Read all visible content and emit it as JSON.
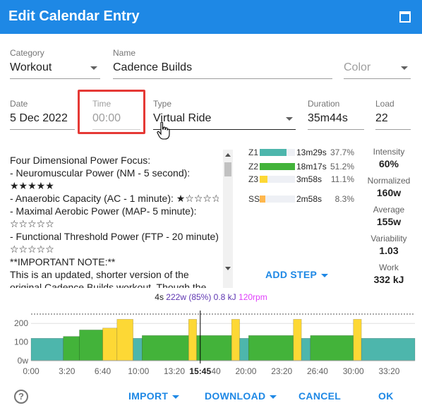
{
  "window": {
    "title": "Edit Calendar Entry"
  },
  "form": {
    "category": {
      "label": "Category",
      "value": "Workout"
    },
    "name": {
      "label": "Name",
      "value": "Cadence Builds"
    },
    "color": {
      "placeholder": "Color"
    },
    "date": {
      "label": "Date",
      "value": "5 Dec 2022"
    },
    "time": {
      "label": "Time",
      "placeholder": "00:00"
    },
    "type": {
      "label": "Type",
      "value": "Virtual Ride"
    },
    "duration": {
      "label": "Duration",
      "value": "35m44s"
    },
    "load": {
      "label": "Load",
      "value": "22"
    }
  },
  "description_lines": [
    "Four Dimensional Power Focus:",
    "- Neuromuscular Power (NM - 5 second):",
    "★★★★★",
    "- Anaerobic Capacity (AC - 1 minute): ★☆☆☆☆",
    "- Maximal Aerobic Power (MAP- 5 minute):",
    "☆☆☆☆☆",
    "- Functional Threshold Power (FTP - 20 minute):",
    "☆☆☆☆☆",
    "**IMPORTANT NOTE:**",
    "This is an updated, shorter version of the",
    "original Cadence Builds workout. Though the"
  ],
  "zones": [
    {
      "label": "Z1",
      "time": "13m29s",
      "pct": "37.7%",
      "fraction": 0.754,
      "color": "#4db6ac"
    },
    {
      "label": "Z2",
      "time": "18m17s",
      "pct": "51.2%",
      "fraction": 1.0,
      "color": "#43b33a"
    },
    {
      "label": "Z3",
      "time": "3m58s",
      "pct": "11.1%",
      "fraction": 0.222,
      "color": "#fdd835"
    },
    {
      "label": "SS",
      "time": "2m58s",
      "pct": "8.3%",
      "fraction": 0.166,
      "color": "#ffb74d"
    }
  ],
  "stats": [
    {
      "label": "Intensity",
      "value": "60%"
    },
    {
      "label": "Normalized",
      "value": "160w"
    },
    {
      "label": "Average",
      "value": "155w"
    },
    {
      "label": "Variability",
      "value": "1.03"
    },
    {
      "label": "Work",
      "value": "332 kJ"
    }
  ],
  "add_step_label": "ADD STEP",
  "readout": {
    "time": "4s",
    "watts": "222w (85%) 0.8 kJ",
    "rpm": "120rpm"
  },
  "chart_data": {
    "type": "area",
    "y_ticks": [
      "200",
      "100",
      "0w"
    ],
    "ylim": [
      0,
      250
    ],
    "x_ticks": [
      "0:00",
      "3:20",
      "6:40",
      "10:00",
      "13:20",
      "16:40",
      "20:00",
      "23:20",
      "26:40",
      "30:00",
      "33:20"
    ],
    "x_tick_seconds": [
      0,
      200,
      400,
      600,
      800,
      1000,
      1200,
      1400,
      1600,
      1800,
      2000
    ],
    "xlim_seconds": [
      0,
      2144
    ],
    "cursor_label": "15:45",
    "cursor_seconds": 945,
    "steps": [
      {
        "start": 0,
        "end": 180,
        "watts": 120,
        "zone": "Z1"
      },
      {
        "start": 180,
        "end": 270,
        "watts": 130,
        "zone": "Z2"
      },
      {
        "start": 270,
        "end": 400,
        "watts": 165,
        "zone": "Z2"
      },
      {
        "start": 400,
        "end": 480,
        "watts": 175,
        "zone": "Z3"
      },
      {
        "start": 480,
        "end": 570,
        "watts": 222,
        "zone": "Z3"
      },
      {
        "start": 570,
        "end": 620,
        "watts": 120,
        "zone": "Z1"
      },
      {
        "start": 620,
        "end": 880,
        "watts": 135,
        "zone": "Z2"
      },
      {
        "start": 880,
        "end": 925,
        "watts": 222,
        "zone": "Z3"
      },
      {
        "start": 925,
        "end": 1120,
        "watts": 135,
        "zone": "Z2"
      },
      {
        "start": 1120,
        "end": 1165,
        "watts": 222,
        "zone": "Z3"
      },
      {
        "start": 1165,
        "end": 1215,
        "watts": 120,
        "zone": "Z1"
      },
      {
        "start": 1215,
        "end": 1465,
        "watts": 135,
        "zone": "Z2"
      },
      {
        "start": 1465,
        "end": 1510,
        "watts": 222,
        "zone": "Z3"
      },
      {
        "start": 1510,
        "end": 1560,
        "watts": 120,
        "zone": "Z1"
      },
      {
        "start": 1560,
        "end": 1800,
        "watts": 135,
        "zone": "Z2"
      },
      {
        "start": 1800,
        "end": 1845,
        "watts": 222,
        "zone": "Z3"
      },
      {
        "start": 1845,
        "end": 2144,
        "watts": 120,
        "zone": "Z1"
      }
    ],
    "zone_colors": {
      "Z1": "#4db6ac",
      "Z2": "#43b33a",
      "Z3": "#fdd835"
    }
  },
  "footer": {
    "import_label": "IMPORT",
    "download_label": "DOWNLOAD",
    "cancel_label": "CANCEL",
    "ok_label": "OK",
    "help_symbol": "?"
  }
}
